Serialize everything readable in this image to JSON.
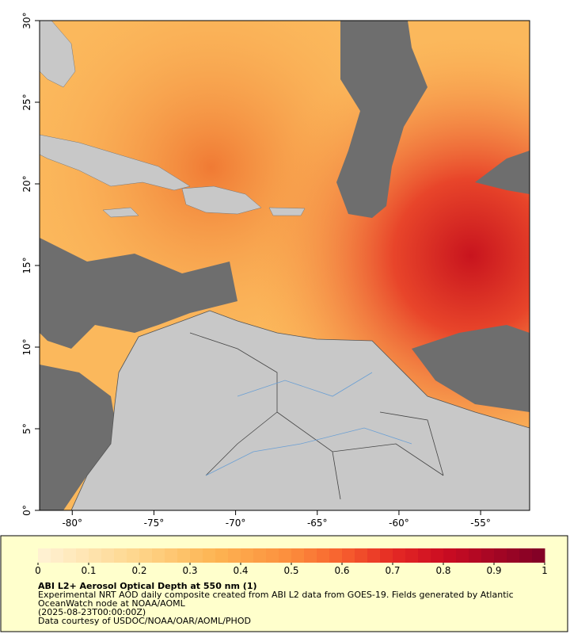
{
  "map": {
    "xlim": [
      -82,
      -52
    ],
    "ylim": [
      0,
      30
    ],
    "xticks": [
      {
        "value": -80,
        "label": "-80°"
      },
      {
        "value": -75,
        "label": "-75°"
      },
      {
        "value": -70,
        "label": "-70°"
      },
      {
        "value": -65,
        "label": "-65°"
      },
      {
        "value": -60,
        "label": "-60°"
      },
      {
        "value": -55,
        "label": "-55°"
      }
    ],
    "yticks": [
      {
        "value": 0,
        "label": "0°"
      },
      {
        "value": 5,
        "label": "5°"
      },
      {
        "value": 10,
        "label": "10°"
      },
      {
        "value": 15,
        "label": "15°"
      },
      {
        "value": 20,
        "label": "20°"
      },
      {
        "value": 25,
        "label": "25°"
      },
      {
        "value": 30,
        "label": "30°"
      }
    ]
  },
  "colorbar": {
    "lim": [
      0,
      1
    ],
    "ticks": [
      0,
      0.1,
      0.2,
      0.3,
      0.4,
      0.5,
      0.6,
      0.7,
      0.8,
      0.9,
      1
    ],
    "colormap": [
      [
        0,
        "#fff3d6"
      ],
      [
        0.2,
        "#fed58a"
      ],
      [
        0.35,
        "#fdb452"
      ],
      [
        0.5,
        "#fc8d3c"
      ],
      [
        0.6,
        "#f7602e"
      ],
      [
        0.7,
        "#e52a24"
      ],
      [
        0.8,
        "#cc0c22"
      ],
      [
        1,
        "#7f0026"
      ]
    ]
  },
  "caption": {
    "title": "ABI L2+ Aerosol Optical Depth at 550 nm (1)",
    "lines": [
      "Experimental NRT AOD daily composite created from ABI L2 data from GOES-19. Fields generated by Atlantic",
      "OceanWatch node at NOAA/AOML",
      "(2025-08-23T00:00:00Z)",
      "Data courtesy of USDOC/NOAA/OAR/AOML/PHOD"
    ]
  }
}
